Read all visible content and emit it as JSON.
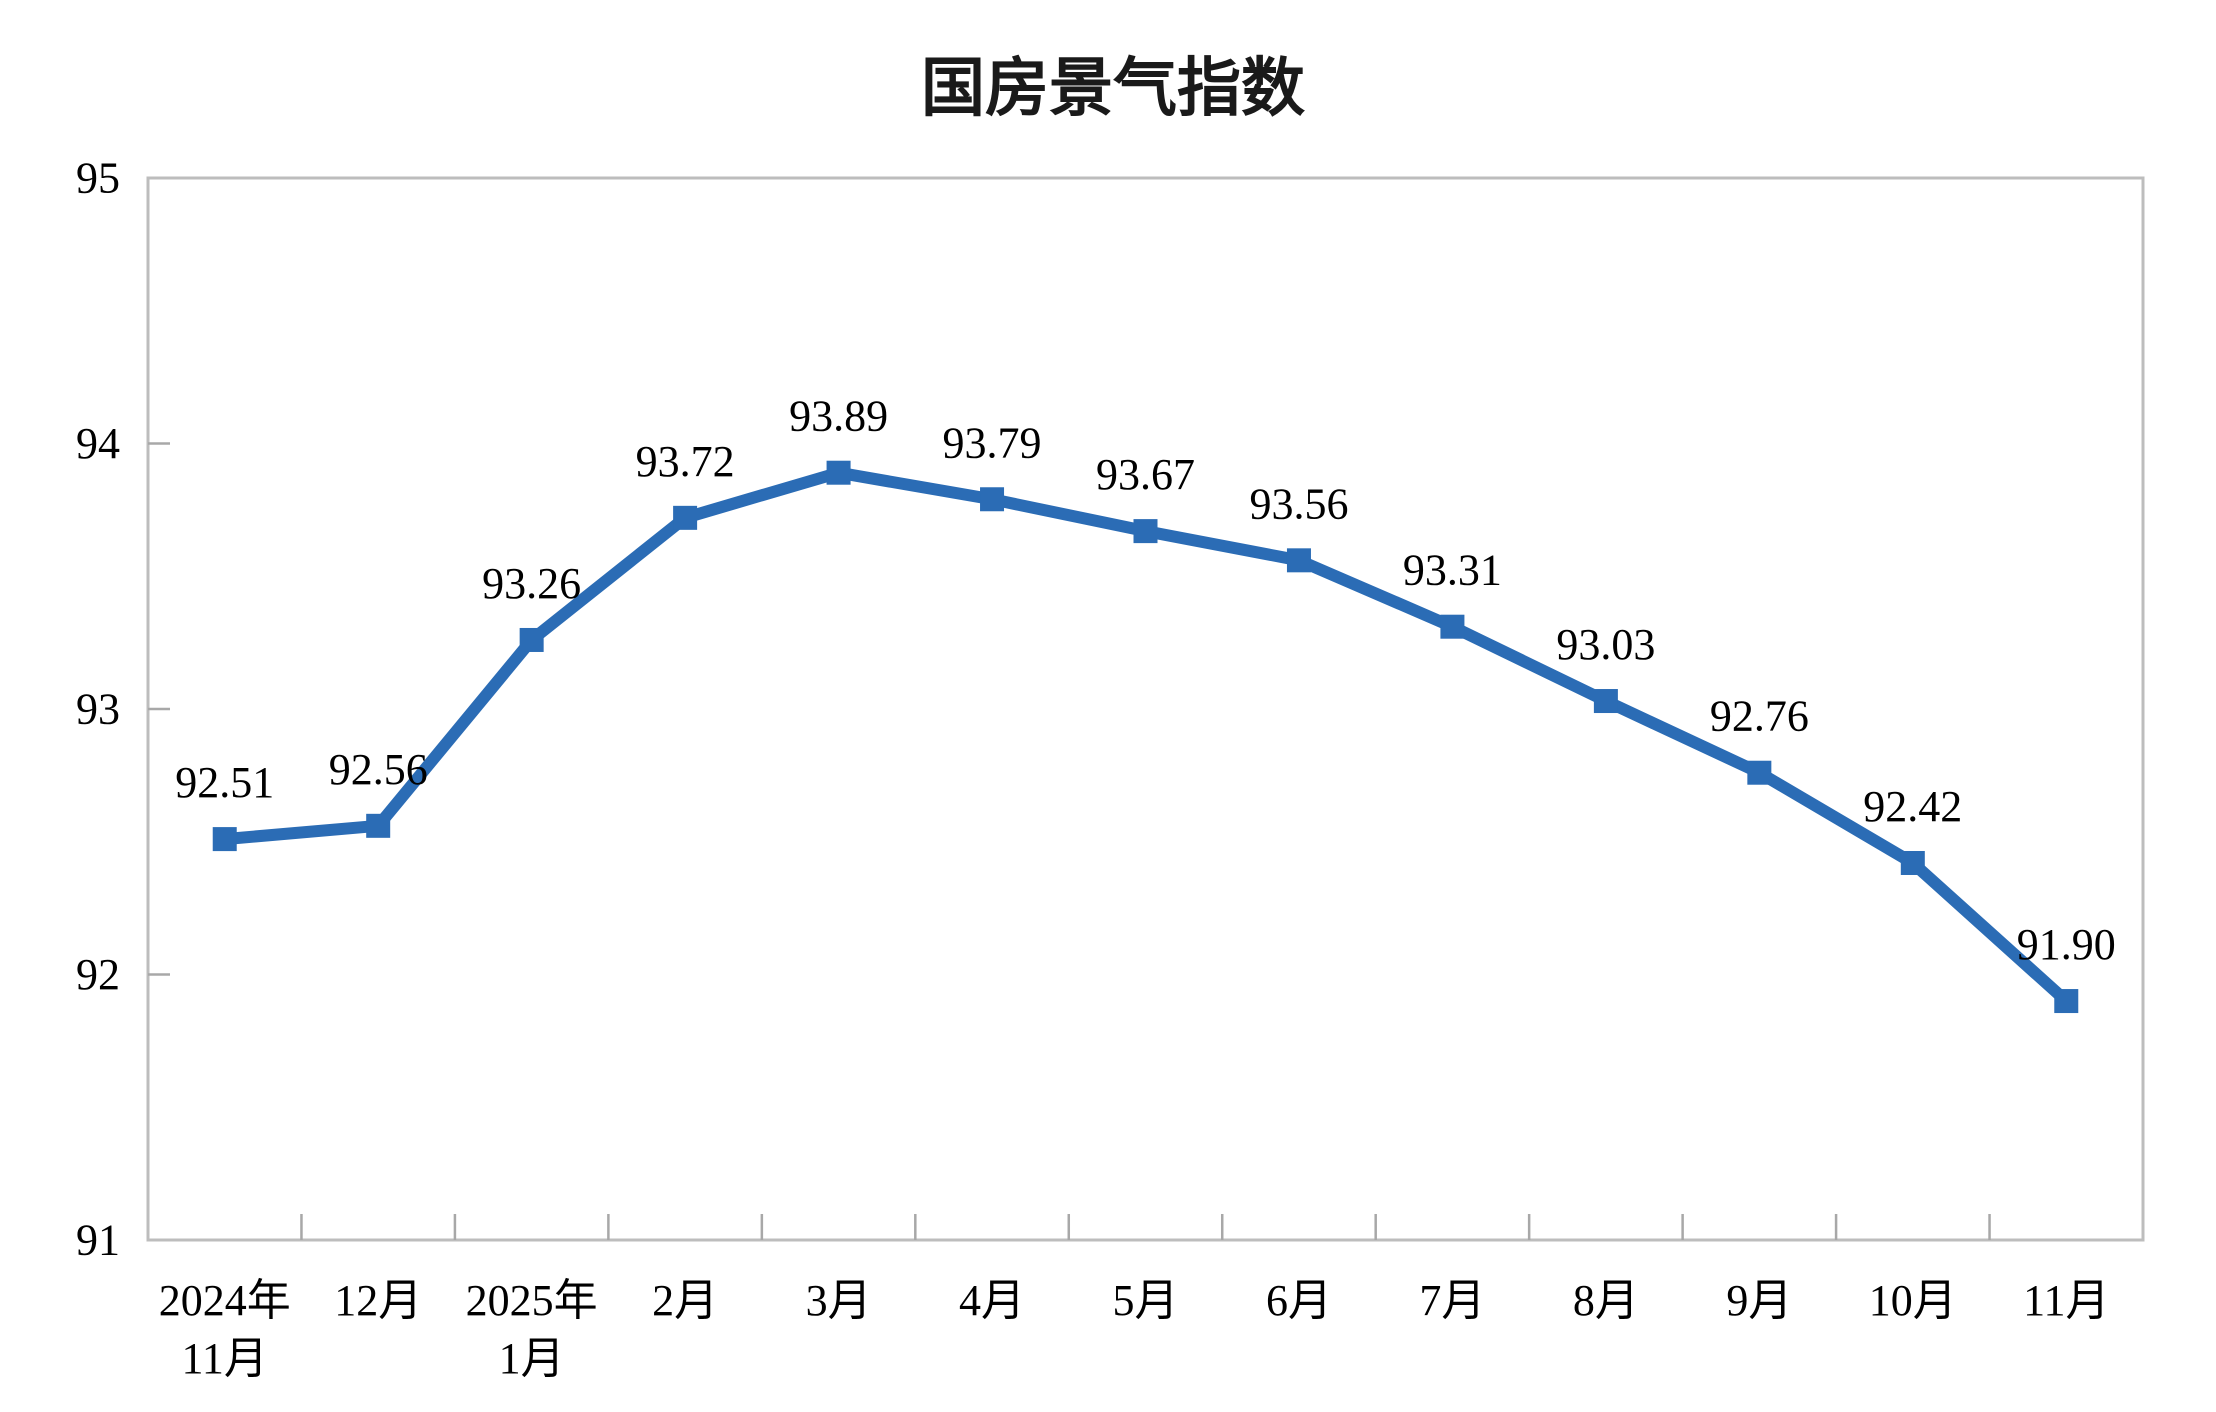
{
  "chart_data": {
    "type": "line",
    "title": "国房景气指数",
    "categories": [
      "2024年\n11月",
      "12月",
      "2025年\n1月",
      "2月",
      "3月",
      "4月",
      "5月",
      "6月",
      "7月",
      "8月",
      "9月",
      "10月",
      "11月"
    ],
    "series": [
      {
        "name": "国房景气指数",
        "values": [
          92.51,
          92.56,
          93.26,
          93.72,
          93.89,
          93.79,
          93.67,
          93.56,
          93.31,
          93.03,
          92.76,
          92.42,
          91.9
        ]
      }
    ],
    "data_labels": [
      "92.51",
      "92.56",
      "93.26",
      "93.72",
      "93.89",
      "93.79",
      "93.67",
      "93.56",
      "93.31",
      "93.03",
      "92.76",
      "92.42",
      "91.90"
    ],
    "xlabel": "",
    "ylabel": "",
    "ylim": [
      91,
      95
    ],
    "yticks": [
      91,
      92,
      93,
      94,
      95
    ],
    "grid": false,
    "legend_position": "none",
    "marker": "square",
    "line_color": "#2b6cb5",
    "marker_color": "#2b6cb5",
    "axis_color": "#bdbdbd",
    "tick_color": "#a8a8a8",
    "text_color": "#000000"
  }
}
